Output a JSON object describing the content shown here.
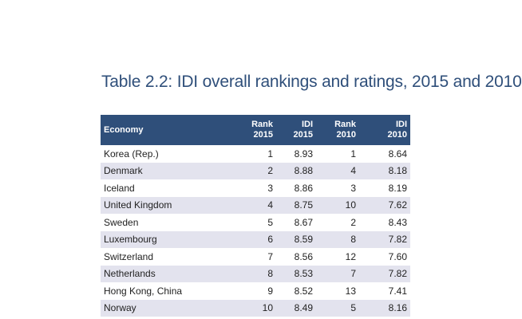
{
  "title": "Table 2.2:   IDI overall rankings and ratings, 2015 and 2010",
  "table": {
    "headers": {
      "economy": "Economy",
      "rank2015": [
        "Rank",
        "2015"
      ],
      "idi2015": [
        "IDI",
        "2015"
      ],
      "rank2010": [
        "Rank",
        "2010"
      ],
      "idi2010": [
        "IDI",
        "2010"
      ]
    },
    "rows": [
      {
        "economy": "Korea (Rep.)",
        "rank2015": "1",
        "idi2015": "8.93",
        "rank2010": "1",
        "idi2010": "8.64"
      },
      {
        "economy": "Denmark",
        "rank2015": "2",
        "idi2015": "8.88",
        "rank2010": "4",
        "idi2010": "8.18"
      },
      {
        "economy": "Iceland",
        "rank2015": "3",
        "idi2015": "8.86",
        "rank2010": "3",
        "idi2010": "8.19"
      },
      {
        "economy": "United Kingdom",
        "rank2015": "4",
        "idi2015": "8.75",
        "rank2010": "10",
        "idi2010": "7.62"
      },
      {
        "economy": "Sweden",
        "rank2015": "5",
        "idi2015": "8.67",
        "rank2010": "2",
        "idi2010": "8.43"
      },
      {
        "economy": "Luxembourg",
        "rank2015": "6",
        "idi2015": "8.59",
        "rank2010": "8",
        "idi2010": "7.82"
      },
      {
        "economy": "Switzerland",
        "rank2015": "7",
        "idi2015": "8.56",
        "rank2010": "12",
        "idi2010": "7.60"
      },
      {
        "economy": "Netherlands",
        "rank2015": "8",
        "idi2015": "8.53",
        "rank2010": "7",
        "idi2010": "7.82"
      },
      {
        "economy": "Hong Kong, China",
        "rank2015": "9",
        "idi2015": "8.52",
        "rank2010": "13",
        "idi2010": "7.41"
      },
      {
        "economy": "Norway",
        "rank2015": "10",
        "idi2015": "8.49",
        "rank2010": "5",
        "idi2010": "8.16"
      }
    ]
  },
  "colors": {
    "header_bg": "#2f4f7a",
    "title_text": "#2f4f7a",
    "row_stripe": "#e3e3ee"
  }
}
